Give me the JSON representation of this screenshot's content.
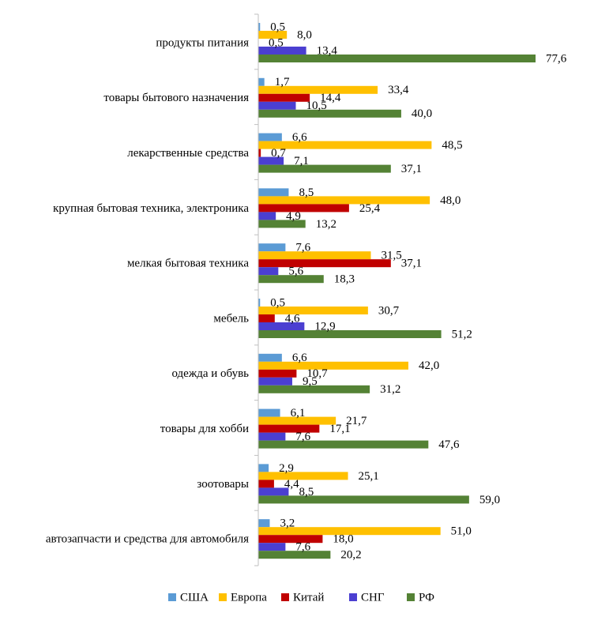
{
  "chart_data": {
    "type": "bar",
    "orientation": "horizontal",
    "categories": [
      "продукты питания",
      "товары бытового назначения",
      "лекарственные средства",
      "крупная бытовая техника, электроника",
      "мелкая бытовая техника",
      "мебель",
      "одежда и обувь",
      "товары для хобби",
      "зоотовары",
      "автозапчасти и средства для автомобиля"
    ],
    "series": [
      {
        "name": "США",
        "color": "#5b9bd5",
        "values": [
          0.5,
          1.7,
          6.6,
          8.5,
          7.6,
          0.5,
          6.6,
          6.1,
          2.9,
          3.2
        ],
        "labels": [
          "0,5",
          "1,7",
          "6,6",
          "8,5",
          "7,6",
          "0,5",
          "6,6",
          "6,1",
          "2,9",
          "3,2"
        ]
      },
      {
        "name": "Европа",
        "color": "#ffc000",
        "values": [
          8.0,
          33.4,
          48.5,
          48.0,
          31.5,
          30.7,
          42.0,
          21.7,
          25.1,
          51.0
        ],
        "labels": [
          "8,0",
          "33,4",
          "48,5",
          "48,0",
          "31,5",
          "30,7",
          "42,0",
          "21,7",
          "25,1",
          "51,0"
        ]
      },
      {
        "name": "Китай",
        "color": "#c00000",
        "values": [
          null,
          14.4,
          0.7,
          25.4,
          37.1,
          4.6,
          10.7,
          17.1,
          4.4,
          18.0
        ],
        "labels": [
          "",
          "14,4",
          "0,7",
          "25,4",
          "37,1",
          "4,6",
          "10,7",
          "17,1",
          "4,4",
          "18,0"
        ]
      },
      {
        "name": "СНГ",
        "color": "#4b3fd1",
        "values": [
          13.4,
          10.5,
          7.1,
          4.9,
          5.6,
          12.9,
          9.5,
          7.6,
          8.5,
          7.6
        ],
        "labels": [
          "13,4",
          "10,5",
          "7,1",
          "4,9",
          "5,6",
          "12,9",
          "9,5",
          "7,6",
          "8,5",
          "7,6"
        ]
      },
      {
        "name": "РФ",
        "color": "#548235",
        "values": [
          77.6,
          40.0,
          37.1,
          13.2,
          18.3,
          51.2,
          31.2,
          47.6,
          59.0,
          20.2
        ],
        "labels": [
          "77,6",
          "40,0",
          "37,1",
          "13,2",
          "18,3",
          "51,2",
          "31,2",
          "47,6",
          "59,0",
          "20,2"
        ]
      }
    ],
    "extra_labels": [
      {
        "category_index": 0,
        "text": "0,5"
      }
    ],
    "xlim": [
      0,
      90
    ],
    "grid": false,
    "legend_position": "bottom"
  }
}
